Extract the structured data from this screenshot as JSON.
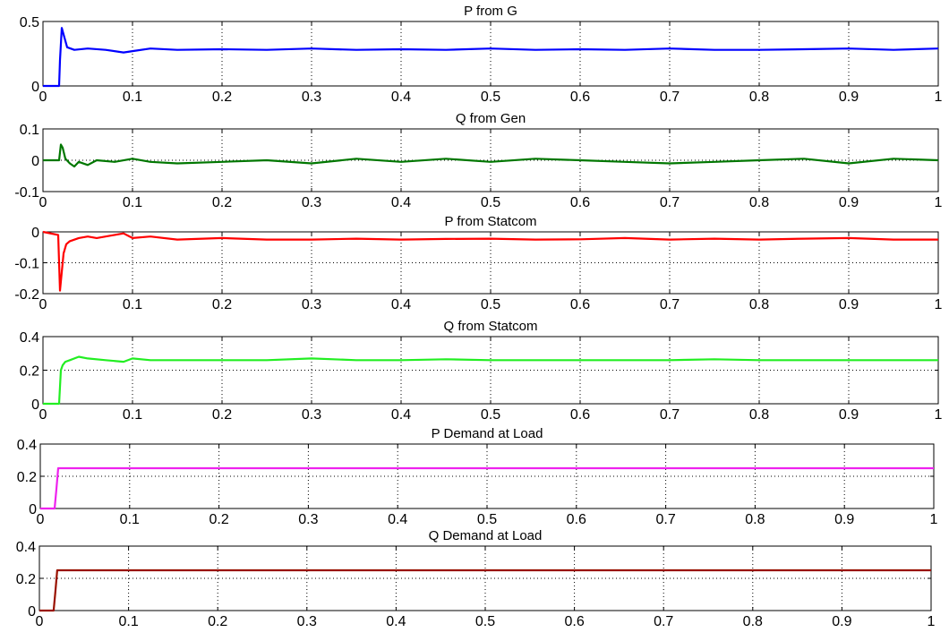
{
  "chart_data": [
    {
      "type": "line",
      "title": "P from G",
      "color": "#0000ff",
      "xlim": [
        0,
        1
      ],
      "ylim": [
        0,
        0.5
      ],
      "xticks": [
        "0",
        "0.1",
        "0.2",
        "0.3",
        "0.4",
        "0.5",
        "0.6",
        "0.7",
        "0.8",
        "0.9",
        "1"
      ],
      "yticks": [
        "0",
        "0.5"
      ],
      "ytick_values": [
        0,
        0.5
      ],
      "grid": true,
      "series": [
        {
          "x": [
            0,
            0.018,
            0.019,
            0.021,
            0.023,
            0.027,
            0.035,
            0.05,
            0.07,
            0.09,
            0.1,
            0.12,
            0.15,
            0.2,
            0.25,
            0.3,
            0.35,
            0.4,
            0.45,
            0.5,
            0.55,
            0.6,
            0.65,
            0.7,
            0.75,
            0.8,
            0.85,
            0.9,
            0.95,
            1.0
          ],
          "y": [
            0,
            0,
            0.2,
            0.45,
            0.4,
            0.3,
            0.28,
            0.29,
            0.28,
            0.26,
            0.27,
            0.29,
            0.28,
            0.285,
            0.28,
            0.29,
            0.28,
            0.285,
            0.28,
            0.29,
            0.28,
            0.285,
            0.28,
            0.29,
            0.28,
            0.28,
            0.285,
            0.29,
            0.28,
            0.29
          ]
        }
      ]
    },
    {
      "type": "line",
      "title": "Q from Gen",
      "color": "#007700",
      "xlim": [
        0,
        1
      ],
      "ylim": [
        -0.1,
        0.1
      ],
      "xticks": [
        "0",
        "0.1",
        "0.2",
        "0.3",
        "0.4",
        "0.5",
        "0.6",
        "0.7",
        "0.8",
        "0.9",
        "1"
      ],
      "yticks": [
        "-0.1",
        "0",
        "0.1"
      ],
      "ytick_values": [
        -0.1,
        0,
        0.1
      ],
      "grid": true,
      "series": [
        {
          "x": [
            0,
            0.018,
            0.02,
            0.022,
            0.025,
            0.03,
            0.035,
            0.04,
            0.05,
            0.06,
            0.08,
            0.1,
            0.12,
            0.15,
            0.2,
            0.25,
            0.3,
            0.35,
            0.4,
            0.45,
            0.5,
            0.55,
            0.6,
            0.65,
            0.7,
            0.75,
            0.8,
            0.85,
            0.9,
            0.95,
            1.0
          ],
          "y": [
            0,
            0,
            0.05,
            0.04,
            0.005,
            -0.01,
            -0.02,
            -0.005,
            -0.015,
            0.0,
            -0.005,
            0.005,
            -0.005,
            -0.01,
            -0.005,
            0.0,
            -0.01,
            0.005,
            -0.005,
            0.005,
            -0.005,
            0.005,
            0.0,
            -0.005,
            -0.01,
            -0.005,
            0.0,
            0.005,
            -0.01,
            0.005,
            0.0
          ]
        }
      ]
    },
    {
      "type": "line",
      "title": "P from Statcom",
      "color": "#ff0000",
      "xlim": [
        0,
        1
      ],
      "ylim": [
        -0.2,
        0
      ],
      "xticks": [
        "0",
        "0.1",
        "0.2",
        "0.3",
        "0.4",
        "0.5",
        "0.6",
        "0.7",
        "0.8",
        "0.9",
        "1"
      ],
      "yticks": [
        "-0.2",
        "-0.1",
        "0"
      ],
      "ytick_values": [
        -0.2,
        -0.1,
        0
      ],
      "grid": true,
      "series": [
        {
          "x": [
            0,
            0.017,
            0.018,
            0.019,
            0.021,
            0.023,
            0.026,
            0.03,
            0.04,
            0.05,
            0.06,
            0.08,
            0.09,
            0.1,
            0.12,
            0.15,
            0.2,
            0.25,
            0.3,
            0.35,
            0.4,
            0.45,
            0.5,
            0.55,
            0.6,
            0.65,
            0.7,
            0.75,
            0.8,
            0.85,
            0.9,
            0.95,
            1.0
          ],
          "y": [
            0,
            -0.01,
            -0.1,
            -0.19,
            -0.13,
            -0.07,
            -0.04,
            -0.03,
            -0.02,
            -0.015,
            -0.02,
            -0.01,
            -0.005,
            -0.02,
            -0.015,
            -0.025,
            -0.02,
            -0.025,
            -0.025,
            -0.022,
            -0.025,
            -0.023,
            -0.022,
            -0.025,
            -0.024,
            -0.02,
            -0.025,
            -0.022,
            -0.025,
            -0.022,
            -0.02,
            -0.025,
            -0.025
          ]
        }
      ]
    },
    {
      "type": "line",
      "title": "Q from Statcom",
      "color": "#22ee22",
      "xlim": [
        0,
        1
      ],
      "ylim": [
        0,
        0.4
      ],
      "xticks": [
        "0",
        "0.1",
        "0.2",
        "0.3",
        "0.4",
        "0.5",
        "0.6",
        "0.7",
        "0.8",
        "0.9",
        "1"
      ],
      "yticks": [
        "0",
        "0.2",
        "0.4"
      ],
      "ytick_values": [
        0,
        0.2,
        0.4
      ],
      "grid": true,
      "series": [
        {
          "x": [
            0,
            0.018,
            0.02,
            0.022,
            0.025,
            0.03,
            0.04,
            0.05,
            0.07,
            0.09,
            0.1,
            0.12,
            0.15,
            0.2,
            0.25,
            0.3,
            0.35,
            0.4,
            0.45,
            0.5,
            0.55,
            0.6,
            0.65,
            0.7,
            0.75,
            0.8,
            0.85,
            0.9,
            0.95,
            1.0
          ],
          "y": [
            0,
            0,
            0.2,
            0.23,
            0.25,
            0.26,
            0.28,
            0.27,
            0.26,
            0.25,
            0.27,
            0.26,
            0.26,
            0.26,
            0.26,
            0.27,
            0.26,
            0.26,
            0.265,
            0.26,
            0.26,
            0.26,
            0.26,
            0.26,
            0.265,
            0.26,
            0.26,
            0.26,
            0.26,
            0.26
          ]
        }
      ]
    },
    {
      "type": "line",
      "title": "P Demand at Load",
      "color": "#ee22ee",
      "xlim": [
        0,
        1
      ],
      "ylim": [
        0,
        0.4
      ],
      "xticks": [
        "0",
        "0.1",
        "0.2",
        "0.3",
        "0.4",
        "0.5",
        "0.6",
        "0.7",
        "0.8",
        "0.9",
        "1"
      ],
      "yticks": [
        "0",
        "0.2",
        "0.4"
      ],
      "ytick_values": [
        0,
        0.2,
        0.4
      ],
      "grid": true,
      "series": [
        {
          "x": [
            0,
            0.016,
            0.018,
            0.02,
            1.0
          ],
          "y": [
            0,
            0,
            0.12,
            0.25,
            0.25
          ]
        }
      ]
    },
    {
      "type": "line",
      "title": "Q Demand at Load",
      "color": "#991100",
      "xlim": [
        0,
        1
      ],
      "ylim": [
        0,
        0.4
      ],
      "xticks": [
        "0",
        "0.1",
        "0.2",
        "0.3",
        "0.4",
        "0.5",
        "0.6",
        "0.7",
        "0.8",
        "0.9",
        "1"
      ],
      "yticks": [
        "0",
        "0.2",
        "0.4"
      ],
      "ytick_values": [
        0,
        0.2,
        0.4
      ],
      "grid": true,
      "series": [
        {
          "x": [
            0,
            0.016,
            0.018,
            0.02,
            1.0
          ],
          "y": [
            0,
            0,
            0.12,
            0.25,
            0.25
          ]
        }
      ]
    }
  ]
}
